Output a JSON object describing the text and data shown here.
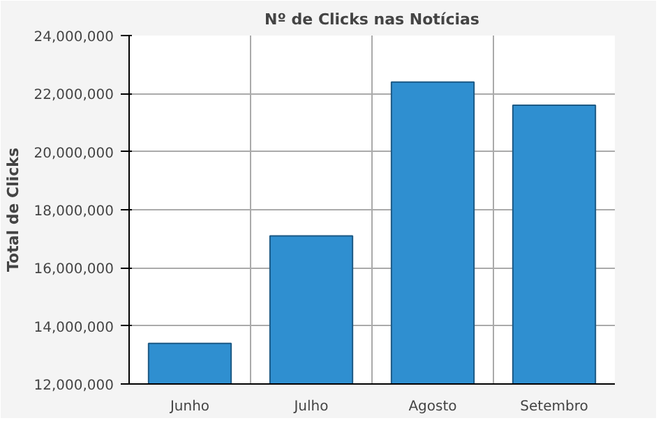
{
  "chart_data": {
    "type": "bar",
    "title": "Nº de Clicks nas Notícias",
    "ylabel": "Total de Clicks",
    "categories": [
      "Junho",
      "Julho",
      "Agosto",
      "Setembro"
    ],
    "values": [
      13400000,
      17100000,
      22400000,
      21600000
    ],
    "color": "#2f8fd0",
    "ylim": [
      12000000,
      24000000
    ],
    "yticks": [
      {
        "value": 12000000,
        "label": "12,000,000"
      },
      {
        "value": 14000000,
        "label": "14,000,000"
      },
      {
        "value": 16000000,
        "label": "16,000,000"
      },
      {
        "value": 18000000,
        "label": "18,000,000"
      },
      {
        "value": 20000000,
        "label": "20,000,000"
      },
      {
        "value": 22000000,
        "label": "22,000,000"
      },
      {
        "value": 24000000,
        "label": "24,000,000"
      }
    ],
    "grid": true
  }
}
